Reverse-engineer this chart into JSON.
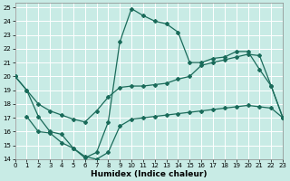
{
  "xlabel": "Humidex (Indice chaleur)",
  "bg_color": "#c8ebe5",
  "grid_color": "#aed4ce",
  "line_color": "#1a6b5a",
  "xlim": [
    0,
    23
  ],
  "ylim": [
    14,
    25.3
  ],
  "xticks": [
    0,
    1,
    2,
    3,
    4,
    5,
    6,
    7,
    8,
    9,
    10,
    11,
    12,
    13,
    14,
    15,
    16,
    17,
    18,
    19,
    20,
    21,
    22,
    23
  ],
  "yticks": [
    14,
    15,
    16,
    17,
    18,
    19,
    20,
    21,
    22,
    23,
    24,
    25
  ],
  "line_top_x": [
    0,
    1,
    2,
    3,
    4,
    5,
    6,
    7,
    8,
    9,
    10,
    11,
    12,
    13,
    14,
    15,
    16,
    17,
    18,
    19,
    20,
    21,
    22,
    23
  ],
  "line_top_y": [
    20.0,
    19.0,
    17.1,
    16.0,
    15.8,
    14.8,
    14.1,
    14.5,
    16.7,
    22.5,
    24.9,
    24.4,
    24.0,
    23.8,
    23.2,
    21.0,
    21.0,
    21.3,
    21.4,
    21.8,
    21.8,
    20.5,
    19.3,
    17.0
  ],
  "line_mid_x": [
    0,
    1,
    2,
    3,
    4,
    5,
    6,
    7,
    8,
    9,
    10,
    11,
    12,
    13,
    14,
    15,
    16,
    17,
    18,
    19,
    20,
    21,
    22,
    23
  ],
  "line_mid_y": [
    20.0,
    19.0,
    18.0,
    17.5,
    17.2,
    16.9,
    16.7,
    17.5,
    18.5,
    19.2,
    19.3,
    19.3,
    19.4,
    19.5,
    19.8,
    20.0,
    20.8,
    21.0,
    21.2,
    21.4,
    21.6,
    21.5,
    19.3,
    17.0
  ],
  "line_bot_x": [
    1,
    2,
    3,
    4,
    5,
    6,
    7,
    8,
    9,
    10,
    11,
    12,
    13,
    14,
    15,
    16,
    17,
    18,
    19,
    20,
    21,
    22,
    23
  ],
  "line_bot_y": [
    17.1,
    16.0,
    15.9,
    15.2,
    14.8,
    14.2,
    14.0,
    14.5,
    16.4,
    16.9,
    17.0,
    17.1,
    17.2,
    17.3,
    17.4,
    17.5,
    17.6,
    17.7,
    17.8,
    17.9,
    17.8,
    17.7,
    17.0
  ]
}
